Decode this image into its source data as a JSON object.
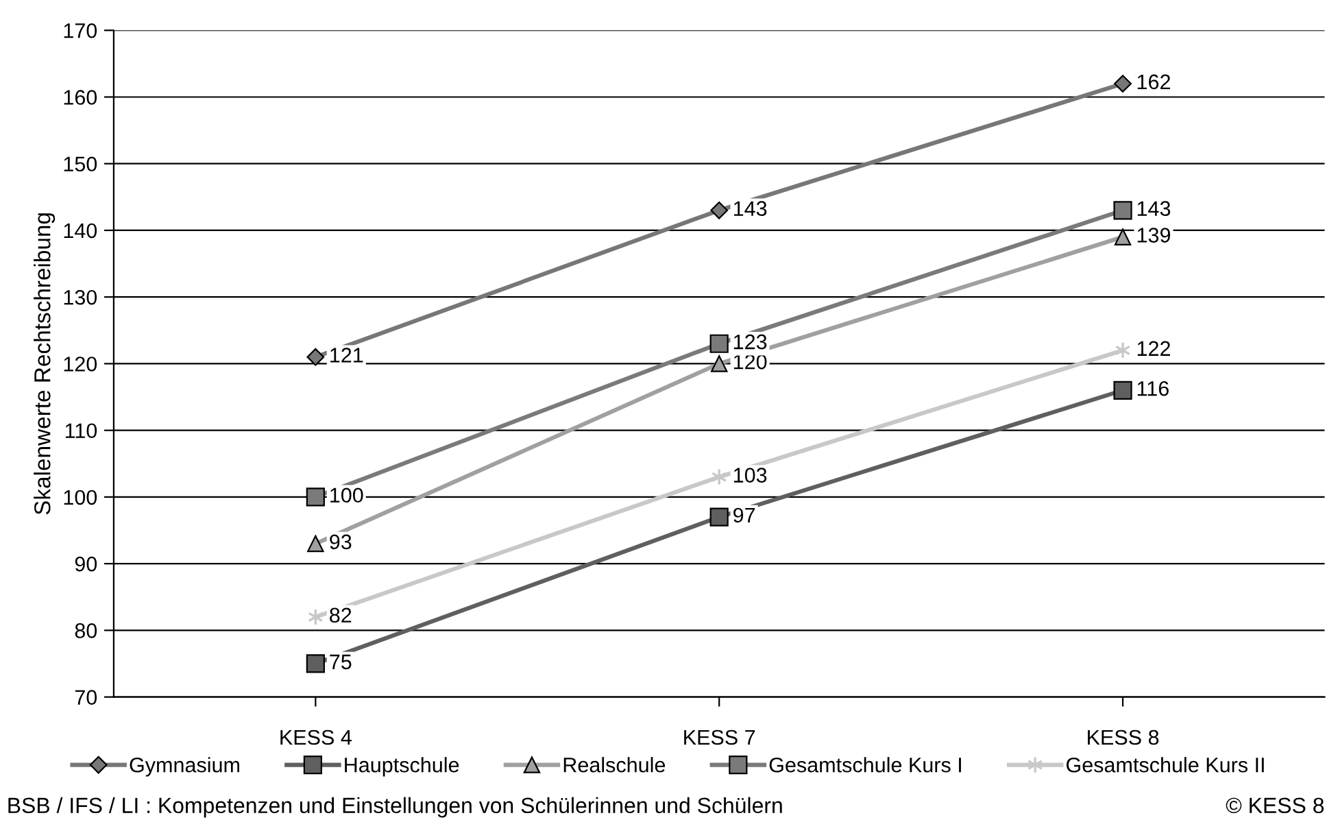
{
  "chart_data": {
    "type": "line",
    "ylabel": "Skalenwerte Rechtschreibung",
    "categories": [
      "KESS 4",
      "KESS 7",
      "KESS 8"
    ],
    "series": [
      {
        "name": "Gymnasium",
        "color": "#777777",
        "marker": "diamond",
        "values": [
          121,
          143,
          162
        ]
      },
      {
        "name": "Hauptschule",
        "color": "#5f5f5f",
        "marker": "square",
        "values": [
          75,
          97,
          116
        ]
      },
      {
        "name": "Realschule",
        "color": "#a0a0a0",
        "marker": "triangle",
        "values": [
          93,
          120,
          139
        ]
      },
      {
        "name": "Gesamtschule Kurs I",
        "color": "#7a7a7a",
        "marker": "square",
        "values": [
          100,
          123,
          143
        ]
      },
      {
        "name": "Gesamtschule Kurs II",
        "color": "#c8c8c8",
        "marker": "cross",
        "values": [
          82,
          103,
          122
        ]
      }
    ],
    "ylim": [
      70,
      170
    ],
    "yticks": [
      70,
      80,
      90,
      100,
      110,
      120,
      130,
      140,
      150,
      160,
      170
    ],
    "grid": "y",
    "legend": "bottom",
    "data_labels": true,
    "annotations": [
      "BSB / IFS / LI : Kompetenzen und Einstellungen von Schülerinnen und Schülern",
      "© KESS 8"
    ]
  }
}
